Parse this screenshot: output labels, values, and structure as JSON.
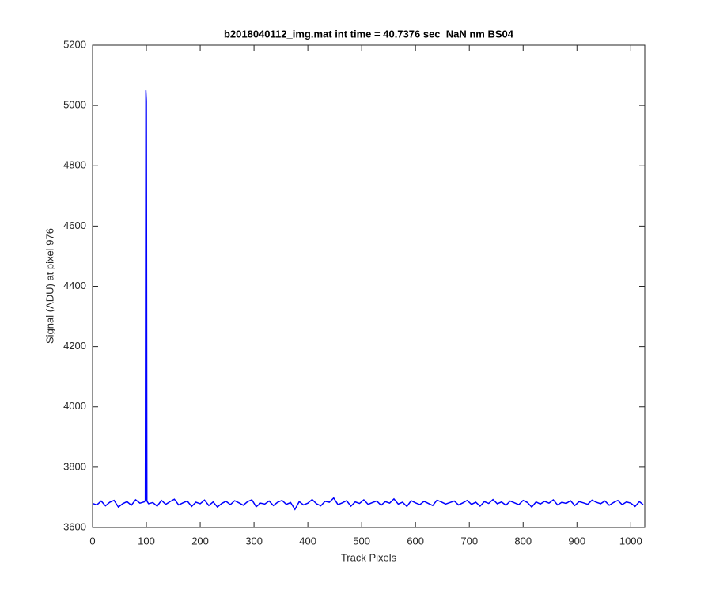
{
  "chart_data": {
    "type": "line",
    "title": "b2018040112_img.mat int time = 40.7376 sec  NaN nm BS04",
    "x_label": "Track Pixels",
    "y_label": "Signal (ADU) at pixel 976",
    "color": "#0000ff",
    "x": [
      0,
      8,
      16,
      24,
      32,
      40,
      48,
      56,
      64,
      72,
      80,
      88,
      96,
      98,
      99,
      100,
      101,
      104,
      112,
      120,
      128,
      136,
      144,
      152,
      160,
      168,
      176,
      184,
      192,
      200,
      208,
      216,
      224,
      232,
      240,
      248,
      256,
      264,
      272,
      280,
      288,
      296,
      304,
      312,
      320,
      328,
      336,
      344,
      352,
      360,
      368,
      376,
      384,
      392,
      400,
      408,
      416,
      424,
      432,
      440,
      448,
      456,
      464,
      472,
      480,
      488,
      496,
      504,
      512,
      520,
      528,
      536,
      544,
      552,
      560,
      568,
      576,
      584,
      592,
      600,
      608,
      616,
      624,
      632,
      640,
      648,
      656,
      664,
      672,
      680,
      688,
      696,
      704,
      712,
      720,
      728,
      736,
      744,
      752,
      760,
      768,
      776,
      784,
      792,
      800,
      808,
      816,
      824,
      832,
      840,
      848,
      856,
      864,
      872,
      880,
      888,
      896,
      904,
      912,
      920,
      928,
      936,
      944,
      952,
      960,
      968,
      976,
      984,
      992,
      1000,
      1008,
      1016,
      1023
    ],
    "values": [
      3680,
      3675,
      3688,
      3672,
      3684,
      3690,
      3668,
      3679,
      3686,
      3674,
      3692,
      3681,
      3685,
      3690,
      5050,
      5015,
      3688,
      3679,
      3683,
      3671,
      3690,
      3677,
      3686,
      3694,
      3675,
      3682,
      3688,
      3670,
      3684,
      3679,
      3691,
      3673,
      3685,
      3668,
      3680,
      3687,
      3676,
      3689,
      3682,
      3674,
      3686,
      3692,
      3669,
      3681,
      3678,
      3688,
      3673,
      3684,
      3690,
      3677,
      3683,
      3660,
      3686,
      3675,
      3681,
      3693,
      3679,
      3672,
      3687,
      3684,
      3698,
      3676,
      3682,
      3689,
      3671,
      3685,
      3680,
      3692,
      3677,
      3683,
      3688,
      3674,
      3686,
      3681,
      3695,
      3678,
      3684,
      3670,
      3689,
      3682,
      3676,
      3687,
      3680,
      3673,
      3691,
      3685,
      3678,
      3683,
      3688,
      3675,
      3682,
      3690,
      3677,
      3684,
      3671,
      3686,
      3680,
      3693,
      3679,
      3685,
      3674,
      3688,
      3682,
      3676,
      3690,
      3683,
      3668,
      3685,
      3678,
      3687,
      3681,
      3692,
      3675,
      3684,
      3680,
      3689,
      3673,
      3686,
      3682,
      3677,
      3691,
      3684,
      3679,
      3688,
      3674,
      3683,
      3690,
      3676,
      3685,
      3681,
      3670,
      3686,
      3676
    ],
    "xlim": [
      0,
      1026
    ],
    "ylim": [
      3600,
      5200
    ],
    "xticks": [
      0,
      100,
      200,
      300,
      400,
      500,
      600,
      700,
      800,
      900,
      1000
    ],
    "yticks": [
      3600,
      3800,
      4000,
      4200,
      4400,
      4600,
      4800,
      5000,
      5200
    ]
  }
}
